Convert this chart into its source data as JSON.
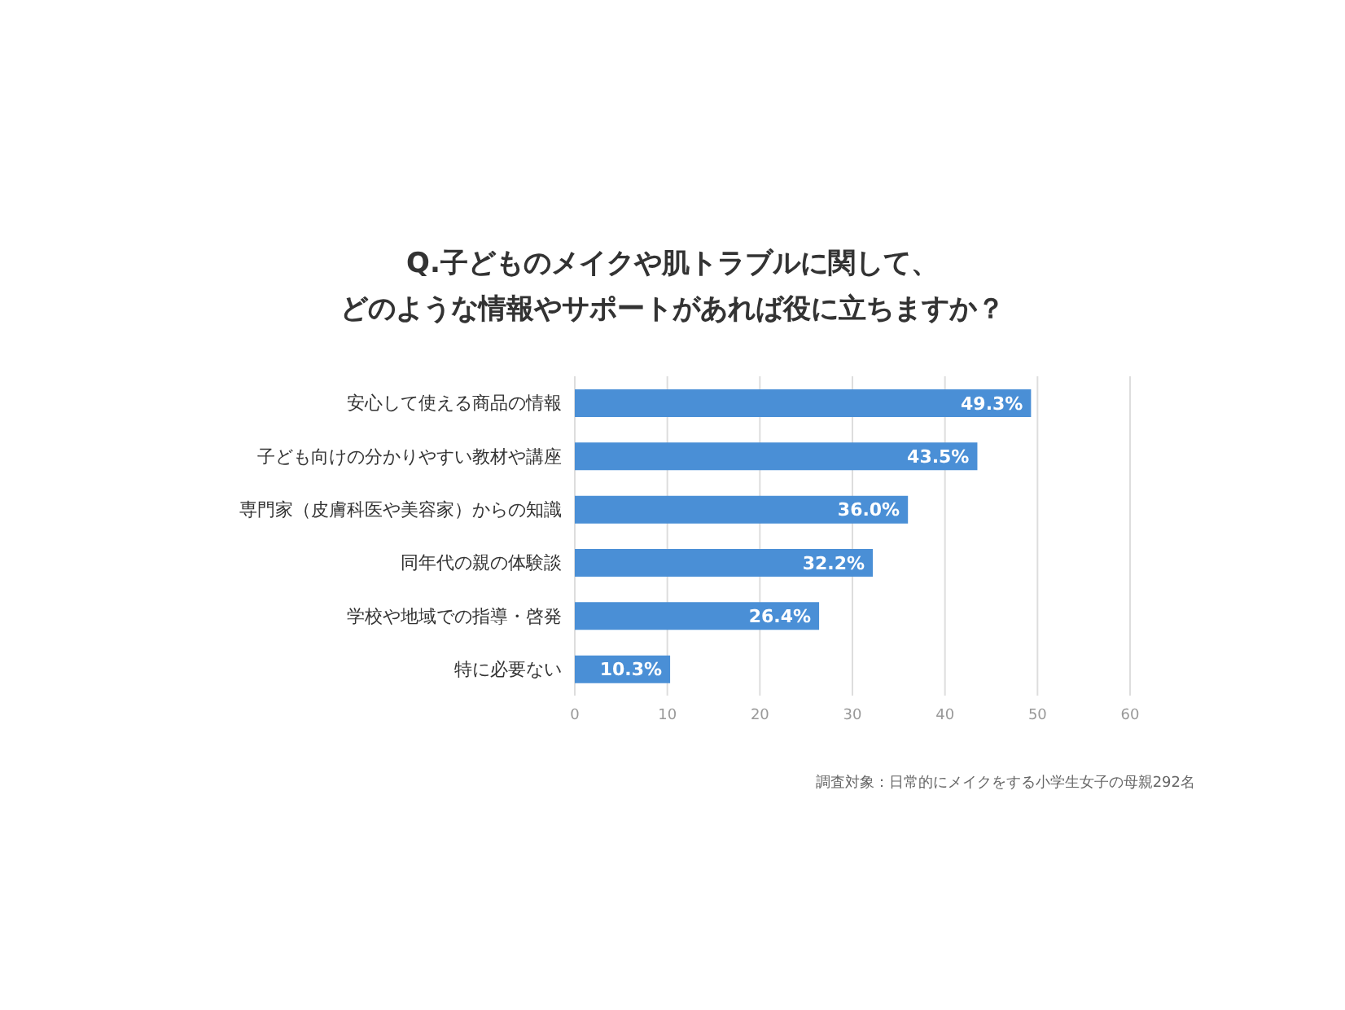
{
  "chart_data": {
    "type": "bar",
    "orientation": "horizontal",
    "title": "Q.子どものメイクや肌トラブルに関して、どのような情報やサポートがあれば役に立ちますか？",
    "categories": [
      "安心して使える商品の情報",
      "子ども向けの分かりやすい教材や講座",
      "専門家（皮膚科医や美容家）からの知識",
      "同年代の親の体験談",
      "学校や地域での指導・啓発",
      "特に必要ない"
    ],
    "values": [
      49.3,
      43.5,
      36.0,
      32.2,
      26.4,
      10.3
    ],
    "value_labels": [
      "49.3%",
      "43.5%",
      "36.0%",
      "32.2%",
      "26.4%",
      "10.3%"
    ],
    "color": "#4a8fd6",
    "xlim": [
      0,
      60
    ],
    "xticks": [
      0,
      10,
      20,
      30,
      40,
      50,
      60
    ],
    "grid": "x",
    "annotations": [
      "調査対象：日常的にメイクをする小学生女子の母親292名"
    ]
  }
}
